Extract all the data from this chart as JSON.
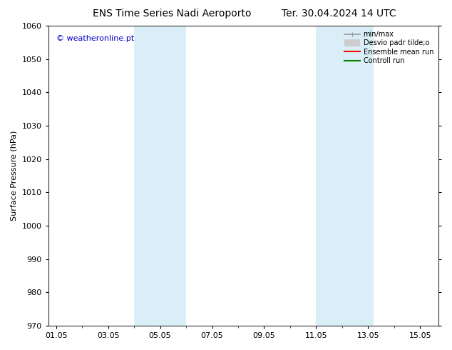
{
  "title_left": "ENS Time Series Nadi Aeroporto",
  "title_right": "Ter. 30.04.2024 14 UTC",
  "ylabel": "Surface Pressure (hPa)",
  "watermark": "© weatheronline.pt",
  "watermark_color": "#0000cc",
  "ylim": [
    970,
    1060
  ],
  "yticks": [
    970,
    980,
    990,
    1000,
    1010,
    1020,
    1030,
    1040,
    1050,
    1060
  ],
  "xtick_labels": [
    "01.05",
    "03.05",
    "05.05",
    "07.05",
    "09.05",
    "11.05",
    "13.05",
    "15.05"
  ],
  "xtick_positions": [
    0,
    2,
    4,
    6,
    8,
    10,
    12,
    14
  ],
  "xlim": [
    -0.3,
    14.7
  ],
  "shaded_bands": [
    {
      "x_start": 3.0,
      "x_end": 5.0,
      "color": "#daeef8"
    },
    {
      "x_start": 10.0,
      "x_end": 12.2,
      "color": "#daeef8"
    }
  ],
  "legend_entries": [
    {
      "label": "min/max",
      "color": "#aaaaaa",
      "lw": 1.5
    },
    {
      "label": "Desvio padr tilde;o",
      "color": "#cccccc",
      "lw": 8
    },
    {
      "label": "Ensemble mean run",
      "color": "#ff0000",
      "lw": 1.5
    },
    {
      "label": "Controll run",
      "color": "#008000",
      "lw": 1.5
    }
  ],
  "background_color": "#ffffff",
  "title_fontsize": 10,
  "label_fontsize": 8,
  "tick_fontsize": 8
}
